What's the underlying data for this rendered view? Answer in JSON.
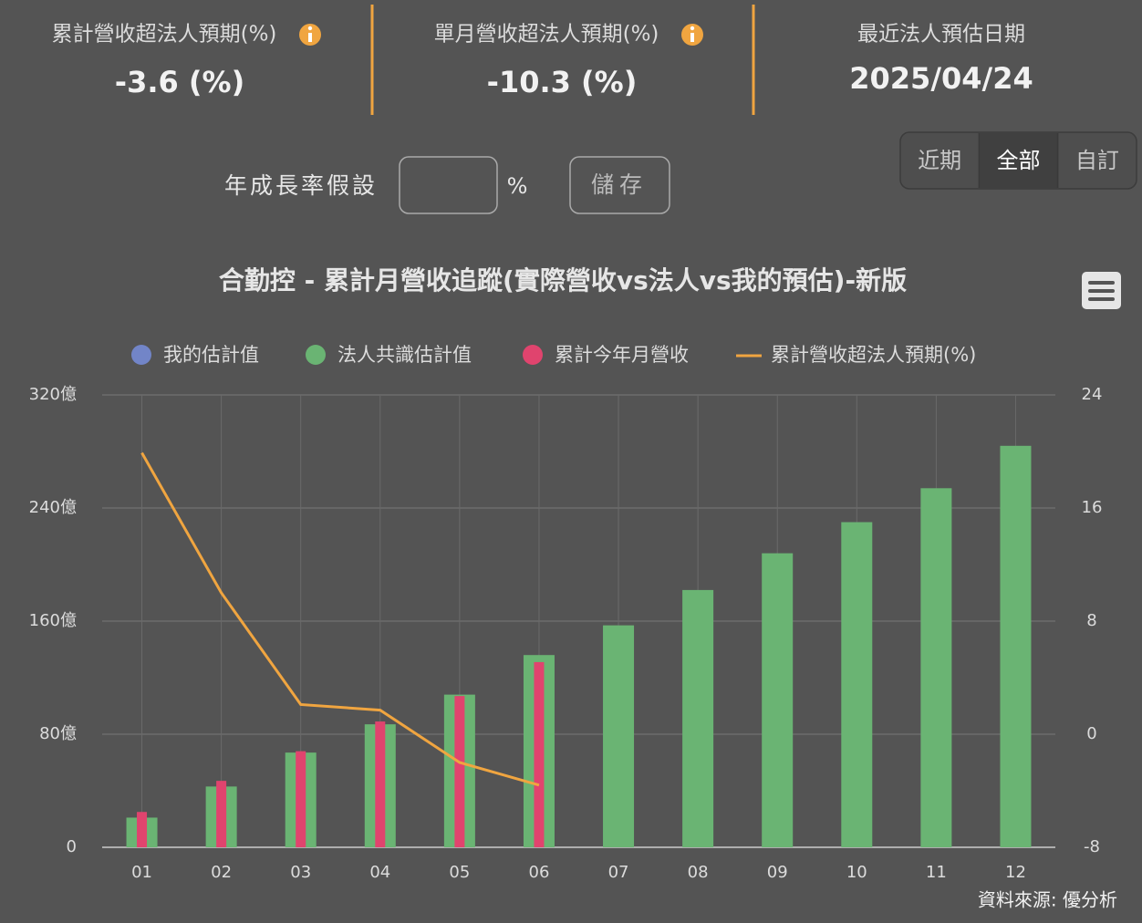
{
  "header": {
    "stats": [
      {
        "label": "累計營收超法人預期(%)",
        "value": "-3.6 (%)"
      },
      {
        "label": "單月營收超法人預期(%)",
        "value": "-10.3 (%)"
      },
      {
        "label": "最近法人預估日期",
        "value": "2025/04/24"
      }
    ]
  },
  "controls": {
    "label": "年成長率假設",
    "unit": "%",
    "button": "儲存",
    "tabs": [
      {
        "label": "近期"
      },
      {
        "label": "全部",
        "active": true
      },
      {
        "label": "自訂"
      }
    ]
  },
  "chart_data": {
    "type": "bar",
    "title": "合勤控 - 累計月營收追蹤(實際營收vs法人vs我的預估)-新版",
    "categories": [
      "01",
      "02",
      "03",
      "04",
      "05",
      "06",
      "07",
      "08",
      "09",
      "10",
      "11",
      "12"
    ],
    "series": [
      {
        "name": "我的估計值",
        "color": "#7285c8",
        "type": "bar",
        "values": [
          null,
          null,
          null,
          null,
          null,
          null,
          null,
          null,
          null,
          null,
          null,
          null
        ]
      },
      {
        "name": "法人共識估計值",
        "color": "#6ab473",
        "type": "bar",
        "values": [
          21,
          43,
          67,
          87,
          108,
          136,
          157,
          182,
          208,
          230,
          254,
          284
        ]
      },
      {
        "name": "累計今年月營收",
        "color": "#e0446e",
        "type": "bar",
        "values": [
          25,
          47,
          68,
          89,
          107,
          131,
          null,
          null,
          null,
          null,
          null,
          null
        ]
      },
      {
        "name": "累計營收超法人預期(%)",
        "color": "#f0a540",
        "type": "line",
        "axis": "y2",
        "values": [
          19.9,
          10.0,
          2.1,
          1.7,
          -2.0,
          -3.6,
          null,
          null,
          null,
          null,
          null,
          null
        ]
      }
    ],
    "ylim": [
      0,
      320
    ],
    "yticks": [
      0,
      {
        "value": 80,
        "label": "80億"
      },
      {
        "value": 160,
        "label": "160億"
      },
      {
        "value": 240,
        "label": "240億"
      },
      {
        "value": 320,
        "label": "320億"
      }
    ],
    "y2lim": [
      -8,
      24
    ],
    "y2ticks": [
      -8,
      0,
      8,
      16,
      24
    ],
    "grid": true,
    "source": "資料來源: 優分析"
  }
}
